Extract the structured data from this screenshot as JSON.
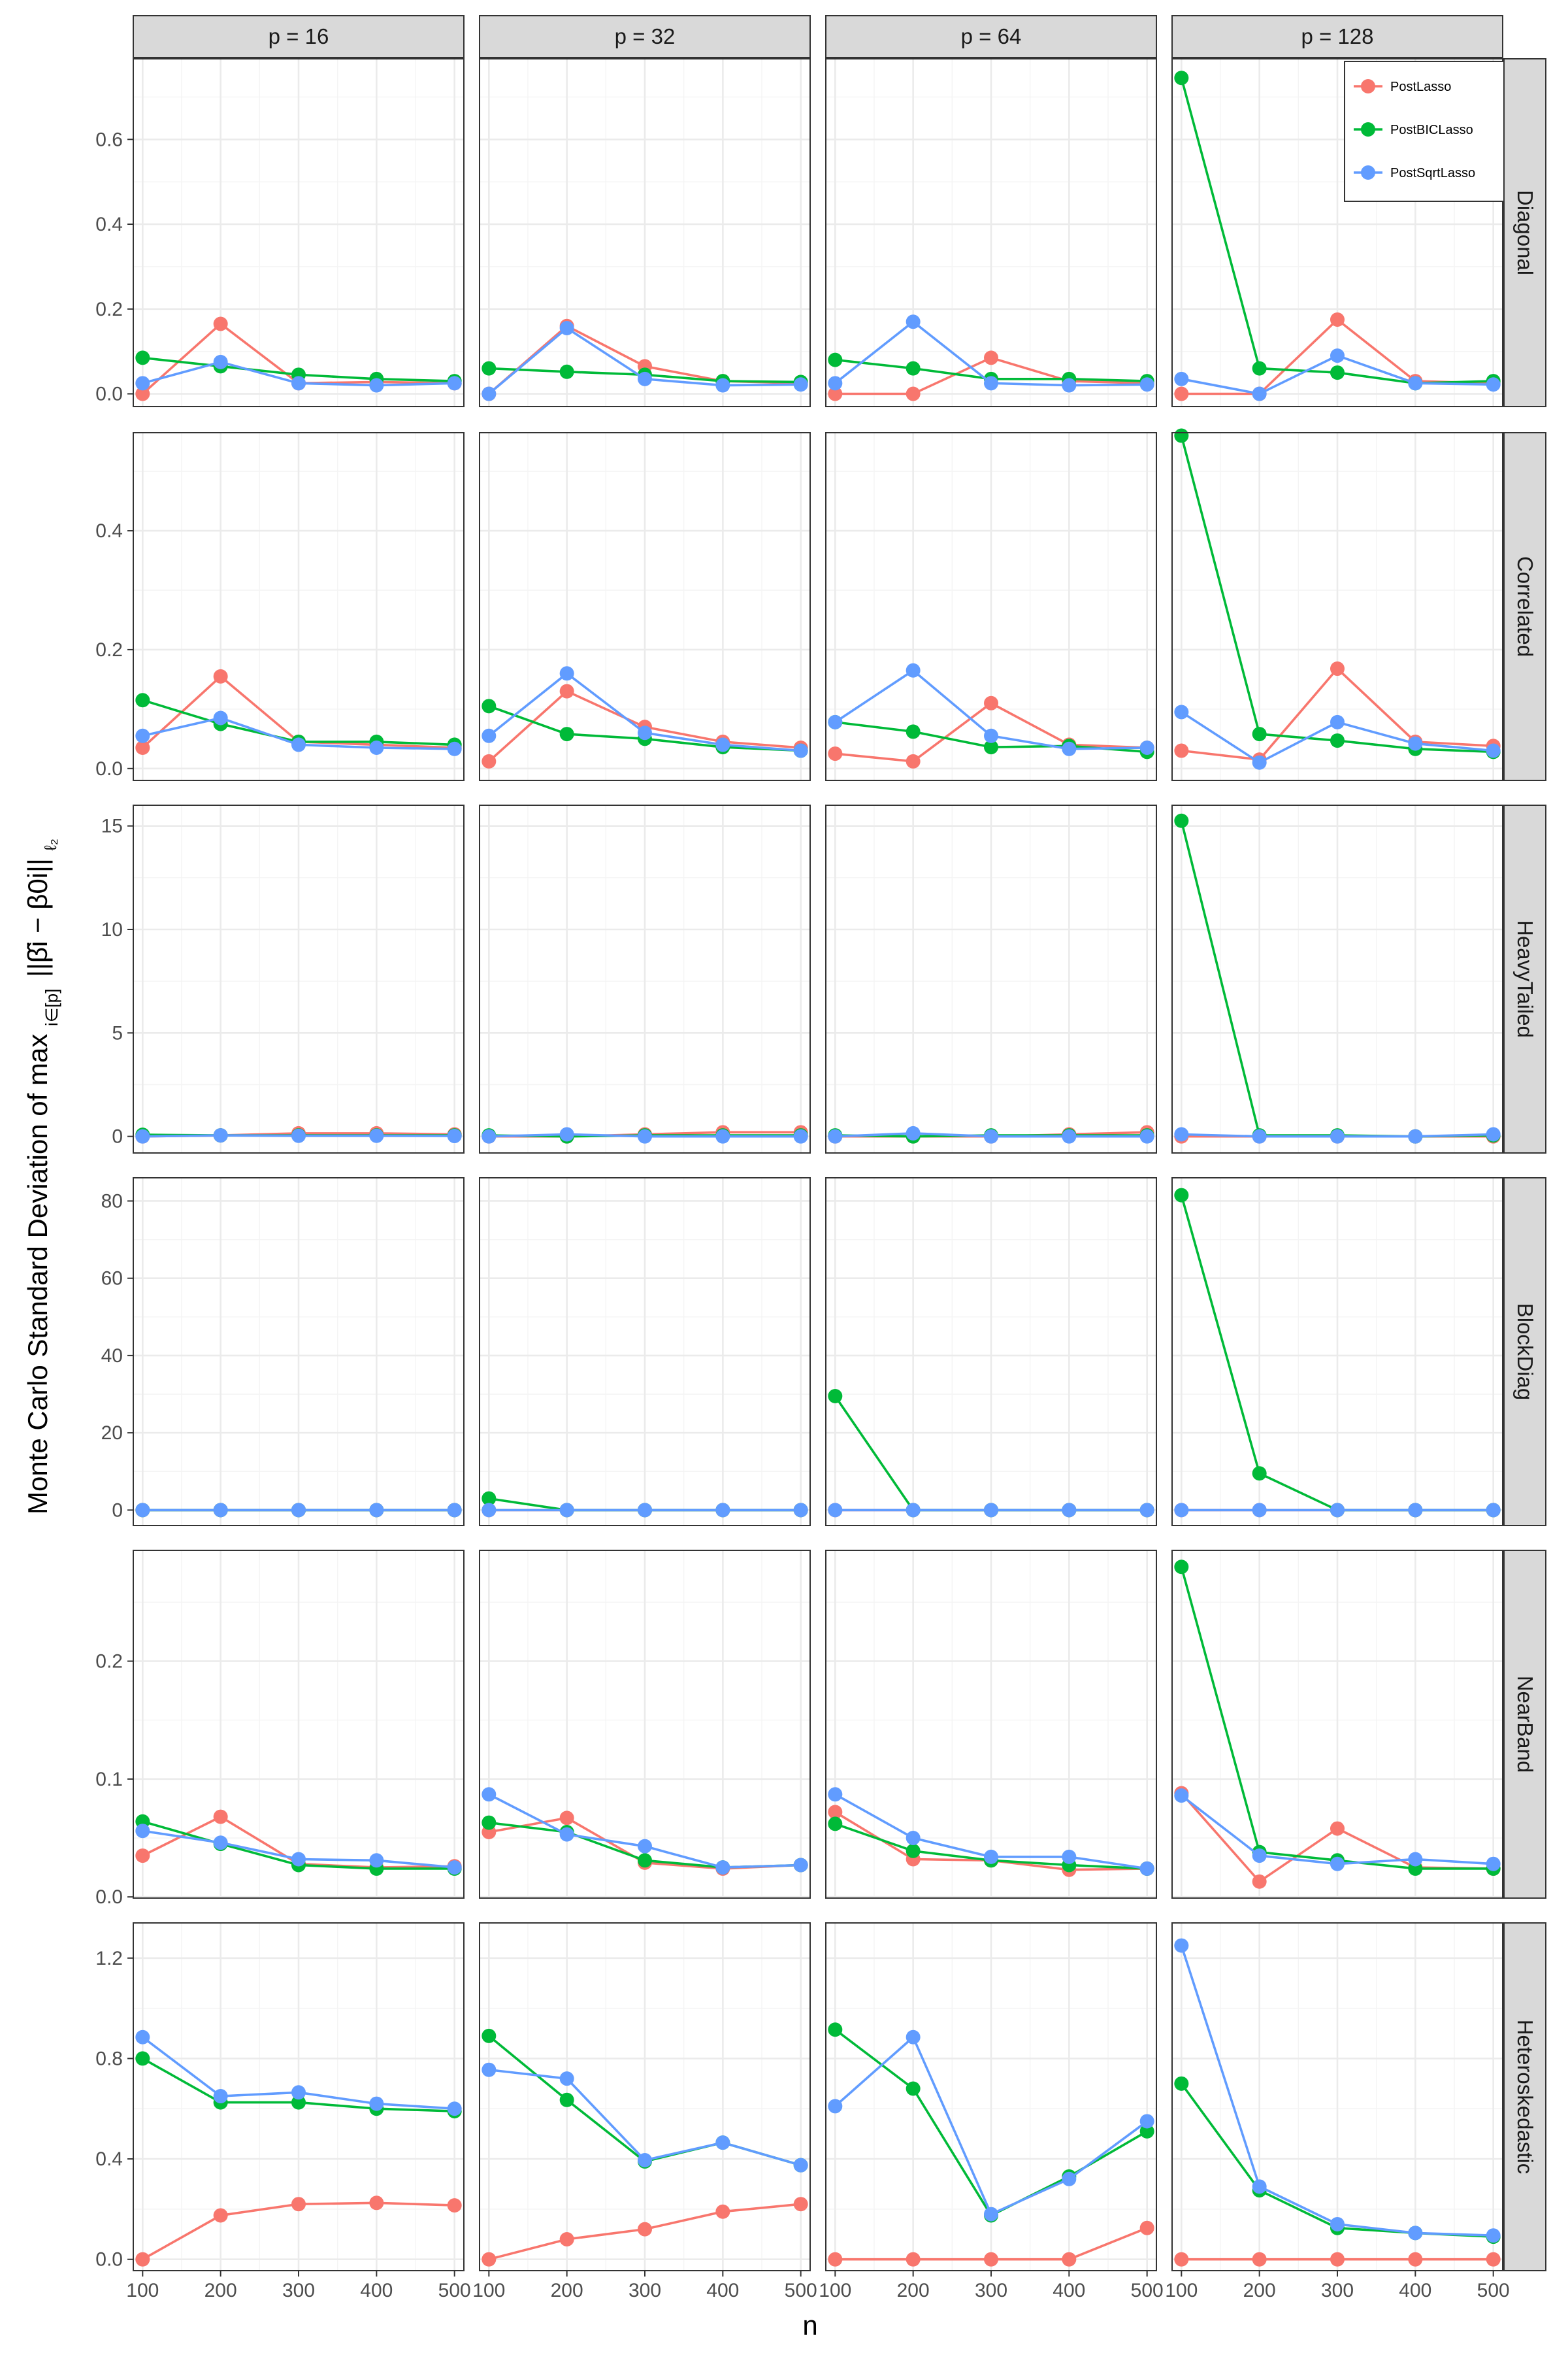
{
  "chart_data": {
    "type": "line",
    "xlabel": "n",
    "ylabel": "Monte Carlo Standard Deviation of max",
    "ylabel_sub": "i∈[p]",
    "ylabel_expr": "||β̂i − β0i||",
    "ylabel_norm_sub": "ℓ₂",
    "x": [
      100,
      200,
      300,
      400,
      500
    ],
    "x_ticks": [
      "100",
      "200",
      "300",
      "400",
      "500"
    ],
    "columns": [
      "p = 16",
      "p = 32",
      "p = 64",
      "p = 128"
    ],
    "rows": [
      "Diagonal",
      "Correlated",
      "HeavyTailed",
      "BlockDiag",
      "NearBand",
      "Heteroskedastic"
    ],
    "legend": {
      "position": "top-right",
      "entries": [
        {
          "name": "PostLasso",
          "color": "#F8766D"
        },
        {
          "name": "PostBICLasso",
          "color": "#00BA38"
        },
        {
          "name": "PostSqrtLasso",
          "color": "#619CFF"
        }
      ]
    },
    "grid": true,
    "row_scales": [
      {
        "ylim": [
          -0.03,
          0.79
        ],
        "yticks": [
          0.0,
          0.2,
          0.4,
          0.6
        ],
        "ytick_labels": [
          "0.0",
          "0.2",
          "0.4",
          "0.6"
        ]
      },
      {
        "ylim": [
          -0.02,
          0.565
        ],
        "yticks": [
          0.0,
          0.2,
          0.4
        ],
        "ytick_labels": [
          "0.0",
          "0.2",
          "0.4"
        ]
      },
      {
        "ylim": [
          -0.8,
          16.0
        ],
        "yticks": [
          0,
          5,
          10,
          15
        ],
        "ytick_labels": [
          "0",
          "5",
          "10",
          "15"
        ]
      },
      {
        "ylim": [
          -4,
          86
        ],
        "yticks": [
          0,
          20,
          40,
          60,
          80
        ],
        "ytick_labels": [
          "0",
          "20",
          "40",
          "60",
          "80"
        ]
      },
      {
        "ylim": [
          -0.001,
          0.294
        ],
        "yticks": [
          0.0,
          0.1,
          0.2
        ],
        "ytick_labels": [
          "0.0",
          "0.1",
          "0.2"
        ]
      },
      {
        "ylim": [
          -0.045,
          1.34
        ],
        "yticks": [
          0.0,
          0.4,
          0.8,
          1.2
        ],
        "ytick_labels": [
          "0.0",
          "0.4",
          "0.8",
          "1.2"
        ]
      }
    ],
    "panels": [
      [
        {
          "PostLasso": [
            0.0,
            0.165,
            0.025,
            0.028,
            0.025
          ],
          "PostBICLasso": [
            0.085,
            0.065,
            0.045,
            0.035,
            0.03
          ],
          "PostSqrtLasso": [
            0.025,
            0.075,
            0.025,
            0.02,
            0.025
          ]
        },
        {
          "PostLasso": [
            0.0,
            0.16,
            0.065,
            0.03,
            0.025
          ],
          "PostBICLasso": [
            0.06,
            0.052,
            0.045,
            0.03,
            0.028
          ],
          "PostSqrtLasso": [
            0.0,
            0.155,
            0.035,
            0.02,
            0.022
          ]
        },
        {
          "PostLasso": [
            0.0,
            0.0,
            0.085,
            0.03,
            0.025
          ],
          "PostBICLasso": [
            0.08,
            0.06,
            0.035,
            0.035,
            0.03
          ],
          "PostSqrtLasso": [
            0.025,
            0.17,
            0.025,
            0.02,
            0.022
          ]
        },
        {
          "PostLasso": [
            0.0,
            0.0,
            0.175,
            0.03,
            0.025
          ],
          "PostBICLasso": [
            0.745,
            0.06,
            0.05,
            0.025,
            0.03
          ],
          "PostSqrtLasso": [
            0.035,
            0.0,
            0.09,
            0.025,
            0.022
          ]
        }
      ],
      [
        {
          "PostLasso": [
            0.035,
            0.155,
            0.045,
            0.04,
            0.035
          ],
          "PostBICLasso": [
            0.115,
            0.075,
            0.045,
            0.045,
            0.04
          ],
          "PostSqrtLasso": [
            0.055,
            0.085,
            0.04,
            0.035,
            0.033
          ]
        },
        {
          "PostLasso": [
            0.012,
            0.13,
            0.07,
            0.045,
            0.035
          ],
          "PostBICLasso": [
            0.105,
            0.058,
            0.05,
            0.036,
            0.03
          ],
          "PostSqrtLasso": [
            0.055,
            0.16,
            0.06,
            0.04,
            0.03
          ]
        },
        {
          "PostLasso": [
            0.025,
            0.012,
            0.11,
            0.04,
            0.035
          ],
          "PostBICLasso": [
            0.078,
            0.062,
            0.036,
            0.038,
            0.028
          ],
          "PostSqrtLasso": [
            0.078,
            0.165,
            0.055,
            0.033,
            0.035
          ]
        },
        {
          "PostLasso": [
            0.03,
            0.015,
            0.168,
            0.045,
            0.038
          ],
          "PostBICLasso": [
            0.56,
            0.058,
            0.047,
            0.033,
            0.028
          ],
          "PostSqrtLasso": [
            0.095,
            0.01,
            0.078,
            0.042,
            0.03
          ]
        }
      ],
      [
        {
          "PostLasso": [
            0.0,
            0.05,
            0.15,
            0.15,
            0.1
          ],
          "PostBICLasso": [
            0.08,
            0.05,
            0.05,
            0.05,
            0.05
          ],
          "PostSqrtLasso": [
            0.0,
            0.05,
            0.03,
            0.03,
            0.02
          ]
        },
        {
          "PostLasso": [
            0.0,
            0.0,
            0.1,
            0.2,
            0.2
          ],
          "PostBICLasso": [
            0.05,
            0.0,
            0.05,
            0.05,
            0.05
          ],
          "PostSqrtLasso": [
            0.0,
            0.1,
            0.0,
            0.0,
            0.0
          ]
        },
        {
          "PostLasso": [
            0.0,
            0.0,
            0.0,
            0.1,
            0.2
          ],
          "PostBICLasso": [
            0.05,
            0.0,
            0.05,
            0.05,
            0.05
          ],
          "PostSqrtLasso": [
            0.0,
            0.15,
            0.0,
            0.0,
            0.0
          ]
        },
        {
          "PostLasso": [
            0.0,
            0.0,
            0.0,
            0.0,
            0.0
          ],
          "PostBICLasso": [
            15.25,
            0.05,
            0.05,
            0.0,
            0.05
          ],
          "PostSqrtLasso": [
            0.1,
            0.0,
            0.0,
            0.0,
            0.1
          ]
        }
      ],
      [
        {
          "PostLasso": [
            0.0,
            0.0,
            0.0,
            0.0,
            0.0
          ],
          "PostBICLasso": [
            0.0,
            0.0,
            0.0,
            0.0,
            0.0
          ],
          "PostSqrtLasso": [
            0.0,
            0.0,
            0.0,
            0.0,
            0.0
          ]
        },
        {
          "PostLasso": [
            0.0,
            0.0,
            0.0,
            0.0,
            0.0
          ],
          "PostBICLasso": [
            3.0,
            0.0,
            0.0,
            0.0,
            0.0
          ],
          "PostSqrtLasso": [
            0.0,
            0.0,
            0.0,
            0.0,
            0.0
          ]
        },
        {
          "PostLasso": [
            0.0,
            0.0,
            0.0,
            0.0,
            0.0
          ],
          "PostBICLasso": [
            29.5,
            0.0,
            0.0,
            0.0,
            0.0
          ],
          "PostSqrtLasso": [
            0.0,
            0.0,
            0.0,
            0.0,
            0.0
          ]
        },
        {
          "PostLasso": [
            0.0,
            0.0,
            0.0,
            0.0,
            0.0
          ],
          "PostBICLasso": [
            81.5,
            9.5,
            0.0,
            0.0,
            0.0
          ],
          "PostSqrtLasso": [
            0.0,
            0.0,
            0.0,
            0.0,
            0.0
          ]
        }
      ],
      [
        {
          "PostLasso": [
            0.035,
            0.068,
            0.028,
            0.025,
            0.026
          ],
          "PostBICLasso": [
            0.064,
            0.045,
            0.027,
            0.024,
            0.024
          ],
          "PostSqrtLasso": [
            0.056,
            0.046,
            0.032,
            0.031,
            0.025
          ]
        },
        {
          "PostLasso": [
            0.055,
            0.067,
            0.029,
            0.024,
            0.027
          ],
          "PostBICLasso": [
            0.063,
            0.055,
            0.031,
            0.025,
            0.027
          ],
          "PostSqrtLasso": [
            0.087,
            0.053,
            0.043,
            0.025,
            0.027
          ]
        },
        {
          "PostLasso": [
            0.072,
            0.032,
            0.031,
            0.023,
            0.024
          ],
          "PostBICLasso": [
            0.062,
            0.039,
            0.031,
            0.027,
            0.024
          ],
          "PostSqrtLasso": [
            0.087,
            0.05,
            0.034,
            0.034,
            0.024
          ]
        },
        {
          "PostLasso": [
            0.088,
            0.013,
            0.058,
            0.025,
            0.024
          ],
          "PostBICLasso": [
            0.28,
            0.038,
            0.031,
            0.024,
            0.024
          ],
          "PostSqrtLasso": [
            0.086,
            0.035,
            0.028,
            0.032,
            0.028
          ]
        }
      ],
      [
        {
          "PostLasso": [
            0.0,
            0.175,
            0.22,
            0.225,
            0.215
          ],
          "PostBICLasso": [
            0.8,
            0.625,
            0.625,
            0.6,
            0.59
          ],
          "PostSqrtLasso": [
            0.885,
            0.65,
            0.665,
            0.62,
            0.6
          ]
        },
        {
          "PostLasso": [
            0.0,
            0.08,
            0.12,
            0.19,
            0.22
          ],
          "PostBICLasso": [
            0.89,
            0.635,
            0.39,
            0.465,
            0.375
          ],
          "PostSqrtLasso": [
            0.755,
            0.72,
            0.395,
            0.465,
            0.375
          ]
        },
        {
          "PostLasso": [
            0.0,
            0.0,
            0.0,
            0.0,
            0.125
          ],
          "PostBICLasso": [
            0.915,
            0.68,
            0.175,
            0.33,
            0.51
          ],
          "PostSqrtLasso": [
            0.61,
            0.885,
            0.18,
            0.32,
            0.55
          ]
        },
        {
          "PostLasso": [
            0.0,
            0.0,
            0.0,
            0.0,
            0.0
          ],
          "PostBICLasso": [
            0.7,
            0.275,
            0.125,
            0.105,
            0.09
          ],
          "PostSqrtLasso": [
            1.25,
            0.29,
            0.14,
            0.105,
            0.095
          ]
        }
      ]
    ]
  }
}
